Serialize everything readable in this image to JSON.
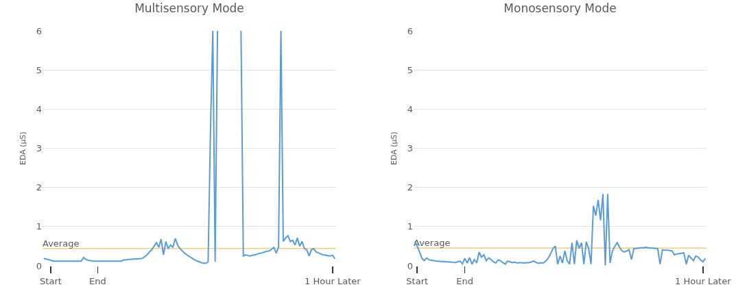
{
  "chart_data": [
    {
      "type": "line",
      "title": "Multisensory Mode",
      "ylabel": "EDA (µS)",
      "ylim": [
        0,
        6
      ],
      "categories": [
        null,
        null,
        null,
        "Start",
        null,
        null,
        null,
        null,
        null,
        null,
        null,
        null,
        null,
        null,
        null,
        null,
        null,
        null,
        null,
        null,
        null,
        null,
        null,
        "End",
        null,
        null,
        null,
        null,
        null,
        null,
        null,
        null,
        null,
        null,
        null,
        null,
        null,
        null,
        null,
        null,
        null,
        null,
        null,
        null,
        null,
        null,
        null,
        null,
        null,
        null,
        null,
        null,
        null,
        null,
        null,
        null,
        null,
        null,
        null,
        null,
        null,
        null,
        null,
        null,
        null,
        null,
        null,
        null,
        null,
        null,
        null,
        null,
        null,
        null,
        null,
        null,
        null,
        null,
        null,
        null,
        null,
        null,
        null,
        null,
        null,
        null,
        null,
        null,
        null,
        null,
        null,
        null,
        null,
        null,
        null,
        null,
        null,
        null,
        null,
        null,
        null,
        null,
        null,
        null,
        null,
        null,
        null,
        null,
        null,
        null,
        null,
        null,
        null,
        null,
        null,
        null,
        null,
        null,
        null,
        null,
        null,
        null,
        null,
        "1 Hour Later",
        null
      ],
      "yticks": [
        0,
        1,
        2,
        3,
        4,
        5,
        6
      ],
      "grid": "y",
      "marker": "none",
      "line_style": "solid",
      "series": [
        {
          "color": "#5b9bd5",
          "values": [
            0.19,
            0.17,
            0.16,
            0.14,
            0.12,
            0.12,
            0.12,
            0.12,
            0.12,
            0.12,
            0.12,
            0.12,
            0.12,
            0.12,
            0.12,
            0.12,
            0.12,
            0.21,
            0.16,
            0.14,
            0.13,
            0.12,
            0.12,
            0.12,
            0.12,
            0.12,
            0.12,
            0.12,
            0.12,
            0.12,
            0.12,
            0.12,
            0.12,
            0.12,
            0.15,
            0.15,
            0.16,
            0.16,
            0.17,
            0.17,
            0.18,
            0.18,
            0.19,
            0.23,
            0.28,
            0.35,
            0.41,
            0.5,
            0.59,
            0.47,
            0.68,
            0.28,
            0.62,
            0.44,
            0.53,
            0.47,
            0.7,
            0.53,
            0.44,
            0.38,
            0.32,
            0.28,
            0.24,
            0.2,
            0.16,
            0.13,
            0.11,
            0.08,
            0.07,
            0.06,
            0.1,
            3.43,
            6,
            0.1,
            6,
            null,
            null,
            null,
            null,
            null,
            null,
            null,
            null,
            null,
            6,
            0.25,
            0.28,
            0.26,
            0.25,
            0.27,
            0.28,
            0.3,
            0.32,
            0.33,
            0.35,
            0.37,
            0.38,
            0.42,
            0.47,
            0.32,
            0.47,
            6,
            0.62,
            0.71,
            0.77,
            0.62,
            0.65,
            0.53,
            0.71,
            0.5,
            0.62,
            0.44,
            0.41,
            0.25,
            0.41,
            0.44,
            0.35,
            0.33,
            0.3,
            0.28,
            0.27,
            0.26,
            0.25,
            0.27,
            0.18
          ]
        }
      ],
      "ref_lines": [
        {
          "axis": "y",
          "value": 0.44,
          "label": "Average",
          "color": "#f6cd85"
        }
      ]
    },
    {
      "type": "line",
      "title": "Monosensory Mode",
      "ylabel": "EDA (µS)",
      "ylim": [
        0,
        6
      ],
      "categories": [
        null,
        "Start",
        null,
        null,
        null,
        null,
        null,
        null,
        null,
        null,
        null,
        null,
        null,
        null,
        null,
        null,
        null,
        null,
        null,
        null,
        null,
        "End",
        null,
        null,
        null,
        null,
        null,
        null,
        null,
        null,
        null,
        null,
        null,
        null,
        null,
        null,
        null,
        null,
        null,
        null,
        null,
        null,
        null,
        null,
        null,
        null,
        null,
        null,
        null,
        null,
        null,
        null,
        null,
        null,
        null,
        null,
        null,
        null,
        null,
        null,
        null,
        null,
        null,
        null,
        null,
        null,
        null,
        null,
        null,
        null,
        null,
        null,
        null,
        null,
        null,
        null,
        null,
        null,
        null,
        null,
        null,
        null,
        null,
        null,
        null,
        null,
        null,
        null,
        null,
        null,
        null,
        null,
        null,
        null,
        null,
        null,
        null,
        null,
        null,
        null,
        null,
        null,
        null,
        null,
        null,
        null,
        null,
        null,
        null,
        null,
        null,
        null,
        null,
        null,
        null,
        null,
        null,
        null,
        null,
        null,
        null,
        "1 Hour Later",
        null
      ],
      "yticks": [
        0,
        1,
        2,
        3,
        4,
        5,
        6
      ],
      "grid": "y",
      "marker": "none",
      "line_style": "solid",
      "series": [
        {
          "color": "#5b9bd5",
          "values": [
            0.62,
            0.5,
            0.35,
            0.19,
            0.13,
            0.2,
            0.15,
            0.14,
            0.13,
            0.12,
            0.12,
            0.11,
            0.11,
            0.1,
            0.1,
            0.09,
            0.09,
            0.08,
            0.1,
            0.12,
            0.05,
            0.19,
            0.07,
            0.21,
            0.04,
            0.16,
            0.07,
            0.35,
            0.22,
            0.28,
            0.13,
            0.2,
            0.16,
            0.1,
            0.07,
            0.15,
            0.13,
            0.08,
            0.04,
            0.12,
            0.1,
            0.08,
            0.09,
            0.07,
            0.08,
            0.08,
            0.07,
            0.08,
            0.08,
            0.1,
            0.12,
            0.08,
            0.06,
            0.08,
            0.07,
            0.12,
            0.19,
            0.3,
            0.44,
            0.5,
            0.04,
            0.25,
            0.07,
            0.38,
            0.13,
            0.04,
            0.59,
            0.04,
            0.65,
            0.44,
            0.59,
            0.04,
            0.61,
            0.44,
            0.04,
            1.53,
            1.28,
            1.68,
            1.16,
            1.83,
            0.01,
            1.83,
            0.07,
            0.38,
            0.5,
            0.59,
            0.47,
            0.38,
            0.35,
            0.38,
            0.41,
            0.16,
            0.44,
            0.44,
            0.45,
            0.46,
            0.46,
            0.47,
            0.46,
            0.45,
            0.45,
            0.44,
            0.44,
            0.04,
            0.41,
            0.4,
            0.4,
            0.39,
            0.38,
            0.28,
            0.3,
            0.31,
            0.32,
            0.33,
            0.04,
            0.27,
            0.2,
            0.13,
            0.25,
            0.22,
            0.15,
            0.1,
            0.19
          ]
        }
      ],
      "ref_lines": [
        {
          "axis": "y",
          "value": 0.45,
          "label": "Average",
          "color": "#f6cd85"
        }
      ]
    }
  ]
}
